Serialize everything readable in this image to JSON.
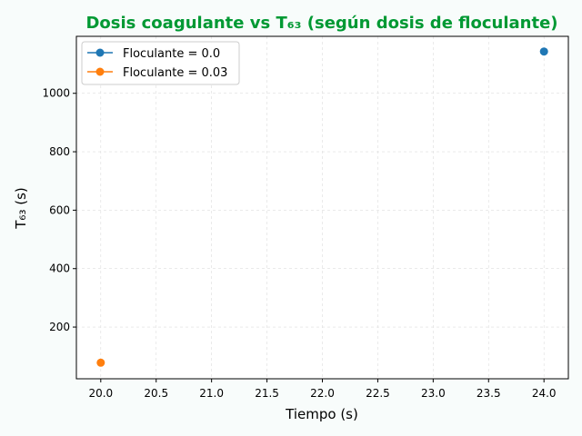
{
  "chart_data": {
    "type": "scatter",
    "title": "Dosis coagulante vs T₆₃ (según dosis de floculante)",
    "xlabel": "Tiempo (s)",
    "ylabel": "T₆₃ (s)",
    "xlim": [
      19.78,
      24.22
    ],
    "ylim": [
      23,
      1195
    ],
    "xticks": [
      "20.0",
      "20.5",
      "21.0",
      "21.5",
      "22.0",
      "22.5",
      "23.0",
      "23.5",
      "24.0"
    ],
    "yticks": [
      "200",
      "400",
      "600",
      "800",
      "1000"
    ],
    "grid": true,
    "legend_position": "top-left",
    "series": [
      {
        "name": "Floculante = 0.0",
        "color": "#1f77b4",
        "points": [
          [
            24.0,
            1143
          ]
        ]
      },
      {
        "name": "Floculante = 0.03",
        "color": "#ff7f0e",
        "points": [
          [
            20.0,
            78
          ]
        ]
      }
    ]
  }
}
